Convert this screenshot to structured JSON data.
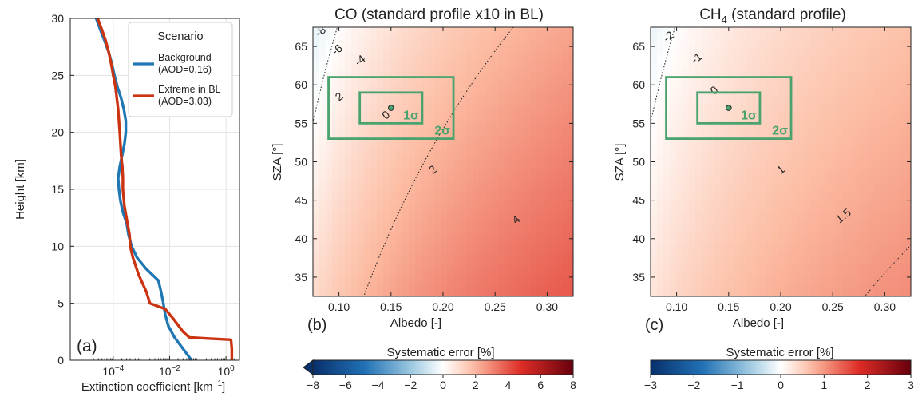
{
  "colors": {
    "background_series": "#1f77b4",
    "extreme_series": "#cc3311",
    "box_color": "#4aa36e",
    "diverging_low": "#08306b",
    "diverging_mid": "#ffffff",
    "diverging_high": "#67000d"
  },
  "chart_data": [
    {
      "id": "a",
      "type": "line",
      "panel_label": "(a)",
      "xlabel": "Extinction coefficient [km",
      "xlabel_sup": "−1",
      "xlabel_end": "]",
      "ylabel": "Height [km]",
      "xscale": "log",
      "xlim": [
        3e-06,
        3
      ],
      "ylim": [
        0,
        30
      ],
      "x_ticks": [
        {
          "value": 0.0001,
          "base": "10",
          "exp": "−4"
        },
        {
          "value": 0.01,
          "base": "10",
          "exp": "−2"
        },
        {
          "value": 1,
          "base": "10",
          "exp": "0"
        }
      ],
      "y_ticks": [
        "0",
        "5",
        "10",
        "15",
        "20",
        "25",
        "30"
      ],
      "grid": true,
      "legend": {
        "title": "Scenario",
        "position": "top-right",
        "entries": [
          {
            "line1": "Background",
            "line2": "(AOD=0.16)"
          },
          {
            "line1": "Extreme in BL",
            "line2": "(AOD=3.03)"
          }
        ]
      },
      "series": [
        {
          "name": "Background (AOD=0.16)",
          "points": [
            [
              0.06,
              0
            ],
            [
              0.03,
              1
            ],
            [
              0.015,
              2
            ],
            [
              0.009,
              3
            ],
            [
              0.007,
              4
            ],
            [
              0.006,
              5
            ],
            [
              0.005,
              6
            ],
            [
              0.004,
              7
            ],
            [
              0.0015,
              8
            ],
            [
              0.0007,
              9
            ],
            [
              0.00045,
              10
            ],
            [
              0.00035,
              11
            ],
            [
              0.0003,
              12
            ],
            [
              0.00022,
              13
            ],
            [
              0.00018,
              14
            ],
            [
              0.00016,
              15
            ],
            [
              0.00015,
              16
            ],
            [
              0.00017,
              17
            ],
            [
              0.0002,
              17.8
            ],
            [
              0.00025,
              19
            ],
            [
              0.00028,
              20
            ],
            [
              0.00028,
              21
            ],
            [
              0.00024,
              22
            ],
            [
              0.00019,
              23
            ],
            [
              0.00014,
              24
            ],
            [
              0.00011,
              25
            ],
            [
              9e-05,
              26
            ],
            [
              7e-05,
              27
            ],
            [
              5e-05,
              28
            ],
            [
              3.5e-05,
              29
            ],
            [
              2.5e-05,
              30
            ]
          ]
        },
        {
          "name": "Extreme in BL (AOD=3.03)",
          "points": [
            [
              1.6,
              0
            ],
            [
              1.6,
              1
            ],
            [
              1.5,
              1.8
            ],
            [
              0.05,
              2
            ],
            [
              0.03,
              2.5
            ],
            [
              0.015,
              3.5
            ],
            [
              0.007,
              4.5
            ],
            [
              0.002,
              5
            ],
            [
              0.0015,
              6
            ],
            [
              0.0008,
              7.5
            ],
            [
              0.0005,
              9
            ],
            [
              0.0004,
              10
            ],
            [
              0.00038,
              11
            ],
            [
              0.00032,
              12
            ],
            [
              0.00025,
              13.5
            ],
            [
              0.00022,
              15
            ],
            [
              0.00022,
              16
            ],
            [
              0.00021,
              17
            ],
            [
              0.00019,
              18
            ],
            [
              0.00017,
              20
            ],
            [
              0.00015,
              22
            ],
            [
              0.00012,
              24
            ],
            [
              0.0001,
              25
            ],
            [
              8.5e-05,
              26
            ],
            [
              7e-05,
              27
            ],
            [
              5.5e-05,
              28
            ],
            [
              4e-05,
              29
            ],
            [
              2.8e-05,
              30
            ]
          ]
        }
      ]
    },
    {
      "id": "b",
      "type": "heatmap",
      "title": "CO (standard profile x10 in BL)",
      "panel_label": "(b)",
      "xlabel": "Albedo [-]",
      "ylabel": "SZA [°]",
      "xlim": [
        0.075,
        0.325
      ],
      "ylim": [
        32.5,
        67.5
      ],
      "x_ticks": [
        "0.10",
        "0.15",
        "0.20",
        "0.25",
        "0.30"
      ],
      "y_ticks": [
        "35",
        "40",
        "45",
        "50",
        "55",
        "60",
        "65"
      ],
      "model_scale": 2.0,
      "color_range": [
        -8,
        8
      ],
      "contour_levels": [
        -8,
        -6,
        -4,
        -2,
        0,
        2,
        4
      ],
      "contour_labels": [
        {
          "text": "-8",
          "x": 0.082,
          "y": 67.0
        },
        {
          "text": "-6",
          "x": 0.098,
          "y": 64.6
        },
        {
          "text": "-4",
          "x": 0.12,
          "y": 63.2
        },
        {
          "text": "2",
          "x": 0.1,
          "y": 58.5
        },
        {
          "text": "0",
          "x": 0.145,
          "y": 56.1
        },
        {
          "text": "2",
          "x": 0.19,
          "y": 49.0
        },
        {
          "text": "4",
          "x": 0.27,
          "y": 42.5
        }
      ],
      "center": {
        "albedo": 0.15,
        "sza": 57
      },
      "box_1sigma": {
        "albedo": [
          0.12,
          0.18
        ],
        "sza": [
          55,
          59
        ],
        "label": "1σ"
      },
      "box_2sigma": {
        "albedo": [
          0.09,
          0.21
        ],
        "sza": [
          53,
          61
        ],
        "label": "2σ"
      },
      "colorbar": {
        "label": "Systematic error [%]",
        "ticks": [
          "−8",
          "−6",
          "−4",
          "−2",
          "0",
          "2",
          "4",
          "6",
          "8"
        ],
        "extend": "min"
      }
    },
    {
      "id": "c",
      "type": "heatmap",
      "title_main": "CH",
      "title_sub": "4",
      "title_rest": " (standard profile)",
      "panel_label": "(c)",
      "xlabel": "Albedo [-]",
      "ylabel": "SZA [°]",
      "xlim": [
        0.075,
        0.325
      ],
      "ylim": [
        32.5,
        67.5
      ],
      "x_ticks": [
        "0.10",
        "0.15",
        "0.20",
        "0.25",
        "0.30"
      ],
      "y_ticks": [
        "35",
        "40",
        "45",
        "50",
        "55",
        "60",
        "65"
      ],
      "model_scale": 0.55,
      "color_range": [
        -3,
        3
      ],
      "contour_levels": [
        -2,
        -1,
        0,
        1,
        1.5
      ],
      "contour_labels": [
        {
          "text": "-2",
          "x": 0.092,
          "y": 66.3
        },
        {
          "text": "-1",
          "x": 0.119,
          "y": 63.5
        },
        {
          "text": "0",
          "x": 0.136,
          "y": 59.3
        },
        {
          "text": "1",
          "x": 0.2,
          "y": 49.0
        },
        {
          "text": "1.5",
          "x": 0.26,
          "y": 43.0
        }
      ],
      "center": {
        "albedo": 0.15,
        "sza": 57
      },
      "box_1sigma": {
        "albedo": [
          0.12,
          0.18
        ],
        "sza": [
          55,
          59
        ],
        "label": "1σ"
      },
      "box_2sigma": {
        "albedo": [
          0.09,
          0.21
        ],
        "sza": [
          53,
          61
        ],
        "label": "2σ"
      },
      "colorbar": {
        "label": "Systematic error [%]",
        "ticks": [
          "−3",
          "−2",
          "−1",
          "0",
          "1",
          "2",
          "3"
        ],
        "extend": "none"
      }
    }
  ]
}
